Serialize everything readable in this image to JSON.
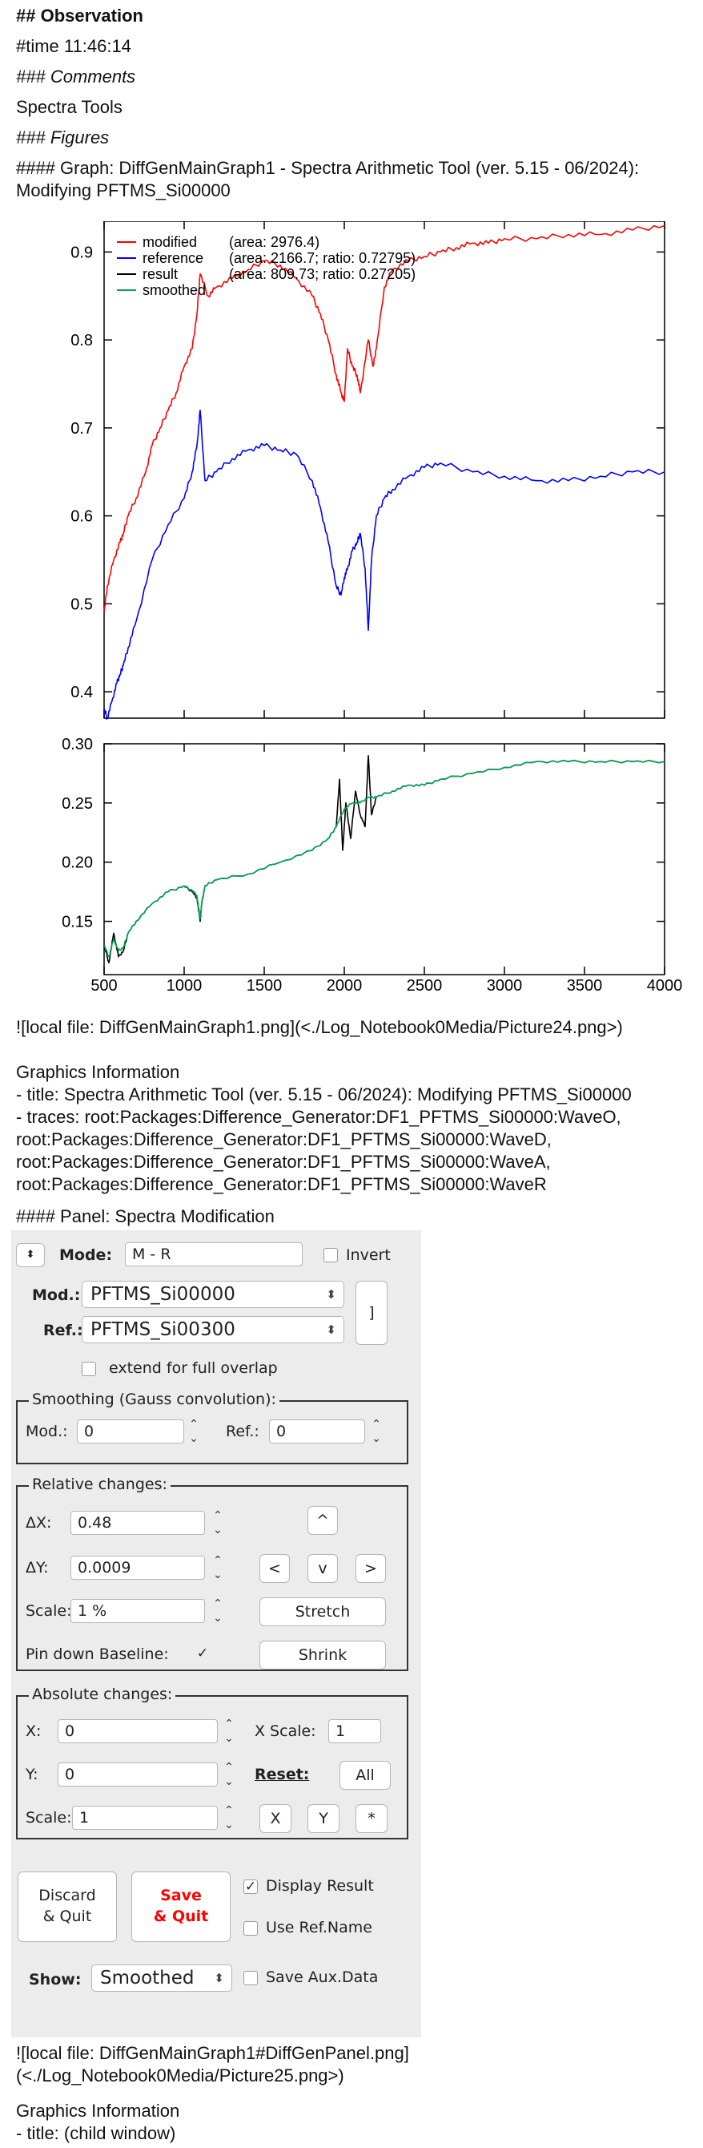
{
  "notebook": {
    "h_observation": "## Observation",
    "time_line": "#time 11:46:14",
    "comments_heading": "### Comments",
    "comment_text": "Spectra Tools",
    "figures_heading": "### Figures",
    "graph_heading": "#### Graph: DiffGenMainGraph1 - Spectra Arithmetic Tool (ver. 5.15 - 06/2024): Modifying PFTMS_Si00000",
    "graph_image_link": "![local file: DiffGenMainGraph1.png](<./Log_Notebook0Media/Picture24.png>)",
    "graph_info_heading": "Graphics Information",
    "graph_info_title": "- title: Spectra Arithmetic Tool (ver. 5.15 - 06/2024): Modifying PFTMS_Si00000",
    "graph_info_traces": "- traces: root:Packages:Difference_Generator:DF1_PFTMS_Si00000:WaveO, root:Packages:Difference_Generator:DF1_PFTMS_Si00000:WaveD, root:Packages:Difference_Generator:DF1_PFTMS_Si00000:WaveA, root:Packages:Difference_Generator:DF1_PFTMS_Si00000:WaveR",
    "panel_heading": "#### Panel: Spectra Modification",
    "panel_image_link": "![local file: DiffGenMainGraph1#DiffGenPanel.png](<./Log_Notebook0Media/Picture25.png>)",
    "panel_info_heading": "Graphics Information",
    "panel_info_title": "- title: (child window)"
  },
  "chart_data": [
    {
      "type": "line",
      "xlim": [
        500,
        4000
      ],
      "ylim": [
        0.37,
        0.935
      ],
      "x_ticks": [
        500,
        1000,
        1500,
        2000,
        2500,
        3000,
        3500,
        4000
      ],
      "y_ticks": [
        0.4,
        0.5,
        0.6,
        0.7,
        0.8,
        0.9
      ],
      "legend_position": "top-left",
      "legend": [
        {
          "name": "modified",
          "info": "(area: 2976.4)",
          "color": "#ff0000"
        },
        {
          "name": "reference",
          "info": "(area: 2166.7; ratio: 0.72795)",
          "color": "#0000ff"
        },
        {
          "name": "result",
          "info": "(area: 809.73; ratio: 0.27205)",
          "color": "#000000"
        },
        {
          "name": "smoothed",
          "info": "",
          "color": "#00a550"
        }
      ],
      "series": [
        {
          "name": "modified",
          "color": "#ff0000",
          "x": [
            500,
            520,
            560,
            600,
            620,
            650,
            700,
            760,
            800,
            850,
            900,
            950,
            1000,
            1050,
            1080,
            1100,
            1150,
            1200,
            1300,
            1400,
            1500,
            1600,
            1700,
            1800,
            1850,
            1900,
            1950,
            1980,
            2000,
            2020,
            2050,
            2080,
            2100,
            2150,
            2180,
            2200,
            2250,
            2300,
            2400,
            2500,
            2600,
            2700,
            2800,
            2900,
            3000,
            3200,
            3400,
            3600,
            3800,
            4000
          ],
          "y": [
            0.49,
            0.52,
            0.55,
            0.57,
            0.58,
            0.6,
            0.62,
            0.65,
            0.68,
            0.7,
            0.72,
            0.74,
            0.77,
            0.79,
            0.83,
            0.875,
            0.85,
            0.86,
            0.87,
            0.88,
            0.89,
            0.885,
            0.87,
            0.85,
            0.83,
            0.8,
            0.76,
            0.74,
            0.73,
            0.79,
            0.77,
            0.76,
            0.74,
            0.8,
            0.77,
            0.79,
            0.86,
            0.88,
            0.89,
            0.895,
            0.9,
            0.905,
            0.91,
            0.91,
            0.915,
            0.915,
            0.92,
            0.92,
            0.925,
            0.93
          ]
        },
        {
          "name": "reference",
          "color": "#0000ff",
          "x": [
            500,
            520,
            550,
            580,
            600,
            620,
            650,
            700,
            800,
            900,
            1000,
            1050,
            1080,
            1100,
            1130,
            1200,
            1300,
            1400,
            1500,
            1600,
            1700,
            1800,
            1850,
            1900,
            1950,
            1980,
            2000,
            2020,
            2050,
            2080,
            2100,
            2130,
            2150,
            2170,
            2200,
            2250,
            2300,
            2400,
            2500,
            2600,
            2800,
            3000,
            3200,
            3400,
            3600,
            3800,
            4000
          ],
          "y": [
            0.38,
            0.37,
            0.39,
            0.41,
            0.42,
            0.43,
            0.45,
            0.48,
            0.55,
            0.59,
            0.62,
            0.65,
            0.68,
            0.72,
            0.64,
            0.65,
            0.665,
            0.675,
            0.68,
            0.675,
            0.67,
            0.64,
            0.61,
            0.57,
            0.52,
            0.51,
            0.53,
            0.54,
            0.56,
            0.57,
            0.58,
            0.54,
            0.47,
            0.55,
            0.6,
            0.62,
            0.63,
            0.645,
            0.655,
            0.66,
            0.65,
            0.645,
            0.64,
            0.64,
            0.645,
            0.65,
            0.65
          ]
        }
      ]
    },
    {
      "type": "line",
      "xlim": [
        500,
        4000
      ],
      "ylim": [
        0.105,
        0.3
      ],
      "x_ticks": [
        500,
        1000,
        1500,
        2000,
        2500,
        3000,
        3500,
        4000
      ],
      "y_ticks": [
        0.15,
        0.2,
        0.25,
        0.3
      ],
      "series": [
        {
          "name": "result",
          "color": "#000000",
          "x": [
            500,
            530,
            560,
            590,
            620,
            650,
            700,
            800,
            900,
            1000,
            1050,
            1080,
            1100,
            1110,
            1130,
            1200,
            1400,
            1600,
            1800,
            1900,
            1950,
            1970,
            1990,
            2010,
            2040,
            2070,
            2100,
            2130,
            2150,
            2170,
            2200,
            2300,
            2400,
            2500,
            2600,
            2800,
            3000,
            3200,
            3400,
            3600,
            3800,
            4000
          ],
          "y": [
            0.13,
            0.115,
            0.14,
            0.12,
            0.125,
            0.14,
            0.15,
            0.165,
            0.175,
            0.18,
            0.175,
            0.17,
            0.15,
            0.165,
            0.18,
            0.185,
            0.19,
            0.2,
            0.21,
            0.22,
            0.23,
            0.27,
            0.21,
            0.25,
            0.22,
            0.26,
            0.24,
            0.23,
            0.29,
            0.24,
            0.255,
            0.26,
            0.265,
            0.265,
            0.27,
            0.275,
            0.28,
            0.285,
            0.285,
            0.285,
            0.285,
            0.285
          ]
        },
        {
          "name": "smoothed",
          "color": "#00a550",
          "x": [
            500,
            530,
            560,
            590,
            620,
            650,
            700,
            800,
            900,
            1000,
            1050,
            1080,
            1100,
            1110,
            1130,
            1200,
            1400,
            1600,
            1800,
            1900,
            1950,
            2000,
            2050,
            2100,
            2150,
            2200,
            2300,
            2400,
            2500,
            2600,
            2800,
            3000,
            3200,
            3400,
            3600,
            3800,
            4000
          ],
          "y": [
            0.13,
            0.12,
            0.135,
            0.125,
            0.128,
            0.14,
            0.15,
            0.165,
            0.175,
            0.18,
            0.176,
            0.172,
            0.152,
            0.166,
            0.18,
            0.185,
            0.19,
            0.2,
            0.21,
            0.22,
            0.23,
            0.245,
            0.25,
            0.25,
            0.255,
            0.255,
            0.26,
            0.265,
            0.265,
            0.27,
            0.275,
            0.28,
            0.285,
            0.285,
            0.285,
            0.285,
            0.285
          ]
        }
      ]
    }
  ],
  "panel": {
    "mode_label": "Mode:",
    "mode_value": "M - R",
    "invert_label": "Invert",
    "mod_label": "Mod.:",
    "mod_value": "PFTMS_Si00000",
    "ref_label": "Ref.:",
    "ref_value": "PFTMS_Si00300",
    "bracket_button": "]",
    "extend_label": "extend for full overlap",
    "smoothing_title": "Smoothing (Gauss convolution):",
    "smooth_mod_label": "Mod.:",
    "smooth_mod_value": "0",
    "smooth_ref_label": "Ref.:",
    "smooth_ref_value": "0",
    "relative_title": "Relative changes:",
    "dx_label": "ΔX:",
    "dx_value": "0.48",
    "dy_label": "ΔY:",
    "dy_value": "0.0009",
    "rel_scale_label": "Scale:",
    "rel_scale_value": "1 %",
    "pin_label": "Pin down Baseline:",
    "pin_checked": "✓",
    "up_button": "^",
    "left_button": "<",
    "down_button": "v",
    "right_button": ">",
    "stretch_button": "Stretch",
    "shrink_button": "Shrink",
    "absolute_title": "Absolute changes:",
    "x_label": "X:",
    "x_value": "0",
    "xscale_label": "X Scale:",
    "xscale_value": "1",
    "y_label": "Y:",
    "y_value": "0",
    "reset_label": "Reset:",
    "all_button": "All",
    "abs_scale_label": "Scale:",
    "abs_scale_value": "1",
    "x_button": "X",
    "y_button": "Y",
    "star_button": "*",
    "discard_line1": "Discard",
    "discard_line2": "& Quit",
    "save_line1": "Save",
    "save_line2": "& Quit",
    "display_result_label": "Display Result",
    "display_result_checked": "✓",
    "use_ref_label": "Use Ref.Name",
    "show_label": "Show:",
    "show_value": "Smoothed",
    "save_aux_label": "Save Aux.Data",
    "save_color": "#ff0000"
  }
}
